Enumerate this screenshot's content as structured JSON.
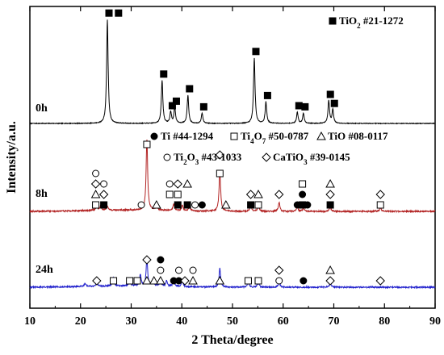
{
  "chart_data": {
    "type": "line",
    "xlabel": "2 Theta/degree",
    "ylabel": "Intensity/a.u.",
    "xlim": [
      10,
      90
    ],
    "x_ticks": [
      "10",
      "20",
      "30",
      "40",
      "50",
      "60",
      "70",
      "80",
      "90"
    ],
    "grid": false,
    "legend": {
      "placement": "top-right",
      "tio2": {
        "symbol": "filled-square",
        "parts": [
          {
            "t": "TiO",
            "s": "n"
          },
          {
            "t": "2",
            "s": "sub"
          },
          {
            "t": " #21-1272",
            "s": "n"
          }
        ]
      },
      "row1": [
        {
          "symbol": "filled-circle",
          "parts": [
            {
              "t": "Ti #44-1294",
              "s": "n"
            }
          ]
        },
        {
          "symbol": "open-square",
          "parts": [
            {
              "t": "Ti",
              "s": "n"
            },
            {
              "t": "4",
              "s": "sub"
            },
            {
              "t": "O",
              "s": "n"
            },
            {
              "t": "7",
              "s": "sub"
            },
            {
              "t": " #50-0787",
              "s": "n"
            }
          ]
        },
        {
          "symbol": "open-triangle",
          "parts": [
            {
              "t": "TiO #08-0117",
              "s": "n"
            }
          ]
        }
      ],
      "row2": [
        {
          "symbol": "open-circle",
          "parts": [
            {
              "t": "Ti",
              "s": "n"
            },
            {
              "t": "2",
              "s": "sub"
            },
            {
              "t": "O",
              "s": "n"
            },
            {
              "t": "3",
              "s": "sub"
            },
            {
              "t": " #43-1033",
              "s": "n"
            }
          ]
        },
        {
          "symbol": "open-diamond",
          "parts": [
            {
              "t": "CaTiO",
              "s": "n"
            },
            {
              "t": "3",
              "s": "sub"
            },
            {
              "t": " #39-0145",
              "s": "n"
            }
          ]
        }
      ]
    },
    "series": [
      {
        "name": "0h",
        "color": "#000000",
        "peaks": [
          {
            "x": 25.3,
            "h": 0.92
          },
          {
            "x": 36.1,
            "h": 0.38
          },
          {
            "x": 37.8,
            "h": 0.1
          },
          {
            "x": 38.6,
            "h": 0.14
          },
          {
            "x": 41.2,
            "h": 0.25
          },
          {
            "x": 44.0,
            "h": 0.09
          },
          {
            "x": 54.3,
            "h": 0.58
          },
          {
            "x": 56.6,
            "h": 0.19
          },
          {
            "x": 62.8,
            "h": 0.1
          },
          {
            "x": 64.0,
            "h": 0.09
          },
          {
            "x": 69.0,
            "h": 0.2
          },
          {
            "x": 69.8,
            "h": 0.12
          }
        ],
        "markers": [
          {
            "x": 27.5,
            "symbol": "filled-square",
            "stack": 6
          }
        ]
      },
      {
        "name": "8h",
        "color": "#b22222",
        "peaks": [
          {
            "x": 23.2,
            "h": 0.05
          },
          {
            "x": 24.0,
            "h": 0.04
          },
          {
            "x": 25.3,
            "h": 0.04
          },
          {
            "x": 33.1,
            "h": 0.62
          },
          {
            "x": 35.0,
            "h": 0.05
          },
          {
            "x": 38.4,
            "h": 0.06
          },
          {
            "x": 40.1,
            "h": 0.05
          },
          {
            "x": 41.5,
            "h": 0.04
          },
          {
            "x": 47.5,
            "h": 0.36
          },
          {
            "x": 53.6,
            "h": 0.06
          },
          {
            "x": 55.1,
            "h": 0.05
          },
          {
            "x": 59.2,
            "h": 0.08
          },
          {
            "x": 62.8,
            "h": 0.04
          },
          {
            "x": 64.0,
            "h": 0.03
          },
          {
            "x": 69.3,
            "h": 0.04
          },
          {
            "x": 79.2,
            "h": 0.03
          }
        ],
        "markers": [
          {
            "x": 23.0,
            "symbol": "open-circle",
            "stack": 4
          },
          {
            "x": 23.0,
            "symbol": "open-diamond",
            "stack": 3
          },
          {
            "x": 23.0,
            "symbol": "open-triangle",
            "stack": 2
          },
          {
            "x": 23.0,
            "symbol": "open-square",
            "stack": 1
          },
          {
            "x": 24.6,
            "symbol": "open-circle",
            "stack": 3
          },
          {
            "x": 24.6,
            "symbol": "open-diamond",
            "stack": 2
          },
          {
            "x": 24.6,
            "symbol": "filled-square",
            "stack": 1
          },
          {
            "x": 33.1,
            "symbol": "open-square",
            "stack": 6
          },
          {
            "x": 32.0,
            "symbol": "open-circle",
            "stack": 1
          },
          {
            "x": 35.0,
            "symbol": "open-triangle",
            "stack": 1
          },
          {
            "x": 37.6,
            "symbol": "open-circle",
            "stack": 3
          },
          {
            "x": 37.6,
            "symbol": "open-square",
            "stack": 2
          },
          {
            "x": 39.2,
            "symbol": "open-diamond",
            "stack": 3
          },
          {
            "x": 39.2,
            "symbol": "open-square",
            "stack": 2
          },
          {
            "x": 39.2,
            "symbol": "filled-square",
            "stack": 1
          },
          {
            "x": 41.1,
            "symbol": "open-triangle",
            "stack": 3
          },
          {
            "x": 41.1,
            "symbol": "filled-square",
            "stack": 1
          },
          {
            "x": 42.6,
            "symbol": "open-circle",
            "stack": 1
          },
          {
            "x": 44.0,
            "symbol": "filled-circle",
            "stack": 1
          },
          {
            "x": 47.5,
            "symbol": "open-diamond",
            "stack": 5
          },
          {
            "x": 47.5,
            "symbol": "open-square",
            "stack": 4
          },
          {
            "x": 48.7,
            "symbol": "open-triangle",
            "stack": 1
          },
          {
            "x": 53.6,
            "symbol": "open-diamond",
            "stack": 2
          },
          {
            "x": 53.6,
            "symbol": "filled-square",
            "stack": 1
          },
          {
            "x": 55.1,
            "symbol": "open-triangle",
            "stack": 2
          },
          {
            "x": 55.1,
            "symbol": "open-square",
            "stack": 1
          },
          {
            "x": 59.2,
            "symbol": "open-diamond",
            "stack": 2
          },
          {
            "x": 62.8,
            "symbol": "filled-circle",
            "stack": 1
          },
          {
            "x": 63.8,
            "symbol": "open-square",
            "stack": 3
          },
          {
            "x": 63.8,
            "symbol": "filled-circle",
            "stack": 2
          },
          {
            "x": 63.8,
            "symbol": "filled-square",
            "stack": 1
          },
          {
            "x": 64.8,
            "symbol": "filled-circle",
            "stack": 1
          },
          {
            "x": 69.3,
            "symbol": "open-triangle",
            "stack": 3
          },
          {
            "x": 69.3,
            "symbol": "open-diamond",
            "stack": 2
          },
          {
            "x": 69.3,
            "symbol": "filled-square",
            "stack": 1
          },
          {
            "x": 79.2,
            "symbol": "open-diamond",
            "stack": 2
          },
          {
            "x": 79.2,
            "symbol": "open-square",
            "stack": 1
          }
        ]
      },
      {
        "name": "24h",
        "color": "#1f1fcc",
        "peaks": [
          {
            "x": 20.9,
            "h": 0.03
          },
          {
            "x": 23.2,
            "h": 0.04
          },
          {
            "x": 26.5,
            "h": 0.07
          },
          {
            "x": 29.7,
            "h": 0.05
          },
          {
            "x": 31.8,
            "h": 0.1
          },
          {
            "x": 33.1,
            "h": 0.24
          },
          {
            "x": 34.3,
            "h": 0.06
          },
          {
            "x": 35.8,
            "h": 0.06
          },
          {
            "x": 37.0,
            "h": 0.05
          },
          {
            "x": 38.4,
            "h": 0.06
          },
          {
            "x": 40.1,
            "h": 0.05
          },
          {
            "x": 47.5,
            "h": 0.17
          },
          {
            "x": 53.1,
            "h": 0.05
          },
          {
            "x": 55.1,
            "h": 0.05
          },
          {
            "x": 59.2,
            "h": 0.05
          },
          {
            "x": 69.3,
            "h": 0.04
          }
        ],
        "markers": [
          {
            "x": 23.2,
            "symbol": "open-diamond",
            "stack": 1
          },
          {
            "x": 26.5,
            "symbol": "open-square",
            "stack": 1
          },
          {
            "x": 29.7,
            "symbol": "open-square",
            "stack": 1
          },
          {
            "x": 31.2,
            "symbol": "open-square",
            "stack": 1
          },
          {
            "x": 33.1,
            "symbol": "open-diamond",
            "stack": 3
          },
          {
            "x": 33.1,
            "symbol": "open-triangle",
            "stack": 1
          },
          {
            "x": 34.5,
            "symbol": "open-triangle",
            "stack": 1
          },
          {
            "x": 35.8,
            "symbol": "filled-circle",
            "stack": 3
          },
          {
            "x": 35.8,
            "symbol": "open-circle",
            "stack": 2
          },
          {
            "x": 35.8,
            "symbol": "open-triangle",
            "stack": 1
          },
          {
            "x": 38.4,
            "symbol": "filled-circle",
            "stack": 1
          },
          {
            "x": 39.4,
            "symbol": "open-circle",
            "stack": 2
          },
          {
            "x": 39.4,
            "symbol": "filled-circle",
            "stack": 1
          },
          {
            "x": 40.6,
            "symbol": "open-diamond",
            "stack": 1
          },
          {
            "x": 42.2,
            "symbol": "open-circle",
            "stack": 2
          },
          {
            "x": 42.2,
            "symbol": "open-triangle",
            "stack": 1
          },
          {
            "x": 47.5,
            "symbol": "open-triangle",
            "stack": 1
          },
          {
            "x": 53.1,
            "symbol": "open-square",
            "stack": 1
          },
          {
            "x": 55.1,
            "symbol": "open-square",
            "stack": 1
          },
          {
            "x": 59.2,
            "symbol": "open-diamond",
            "stack": 2
          },
          {
            "x": 59.2,
            "symbol": "open-circle",
            "stack": 1
          },
          {
            "x": 64.0,
            "symbol": "filled-circle",
            "stack": 1
          },
          {
            "x": 69.3,
            "symbol": "open-triangle",
            "stack": 2
          },
          {
            "x": 69.3,
            "symbol": "open-diamond",
            "stack": 1
          },
          {
            "x": 79.2,
            "symbol": "open-diamond",
            "stack": 1
          }
        ]
      }
    ]
  }
}
